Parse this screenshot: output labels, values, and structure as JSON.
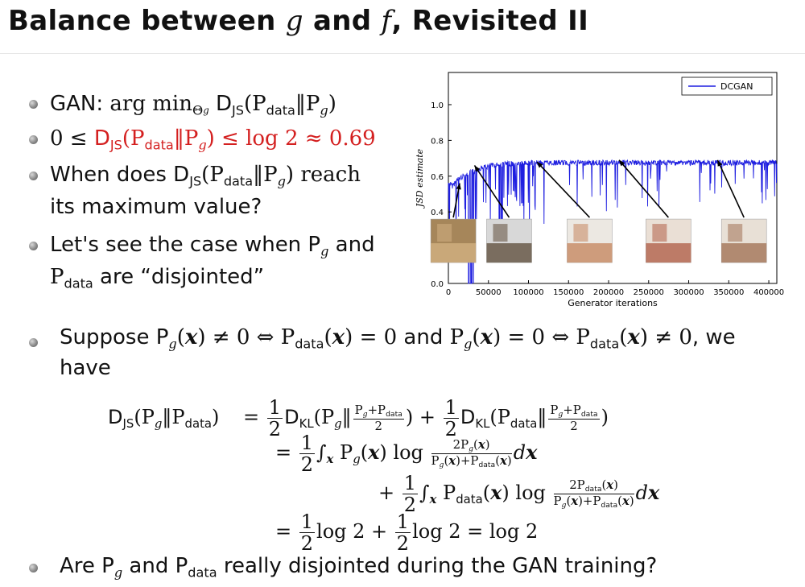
{
  "slide": {
    "title_pre": "Balance between ",
    "title_g": "g",
    "title_and": " and ",
    "title_f": "f",
    "title_post": ", Revisited II"
  },
  "bullets": {
    "b1_prefix": "GAN: ",
    "b1_math": "arg min",
    "b1_sub": "Θ",
    "b1_subsub": "g",
    "b1_rest": "D",
    "b1_js": "JS",
    "b1_expr": "(P",
    "b1_data": "data",
    "b1_end": "‖P",
    "b1_g": "g",
    "b1_close": ")",
    "b2_left": "0 ≤ ",
    "b2_D": "D",
    "b2_JS": "JS",
    "b2_mid": "(P",
    "b2_data": "data",
    "b2_mid2": "‖P",
    "b2_g": "g",
    "b2_right": ") ≤ log 2 ≈ 0.69",
    "b3_line1_a": "When does ",
    "b3_line1_D": "D",
    "b3_line1_JS": "JS",
    "b3_line1_p": "(P",
    "b3_line1_data": "data",
    "b3_line1_pg": "‖P",
    "b3_line1_g": "g",
    "b3_line1_end": ") reach",
    "b3_line2": "its maximum value?",
    "b4_line1_a": "Let's see the case when P",
    "b4_line1_g": "g",
    "b4_line1_b": " and",
    "b4_line2_P": "P",
    "b4_line2_data": "data",
    "b4_line2_b": " are “disjointed”",
    "b5_line1": "Suppose P",
    "b5_line2": "have",
    "b6_a": "Are P",
    "b6_g": "g",
    "b6_b": " and P",
    "b6_data": "data",
    "b6_c": " really disjointed during the GAN training?"
  },
  "chart_data": {
    "type": "line",
    "xlabel": "Generator iterations",
    "ylabel": "JSD estimate",
    "xlim": [
      0,
      410000
    ],
    "ylim": [
      0.0,
      1.18
    ],
    "xticks": [
      0,
      50000,
      100000,
      150000,
      200000,
      250000,
      300000,
      350000,
      400000
    ],
    "yticks": [
      0.0,
      0.4,
      0.6,
      0.8,
      1.0
    ],
    "legend_position": "top-right",
    "color": "#1f1fe0",
    "series": [
      {
        "name": "DCGAN",
        "x": [
          0,
          5000,
          10000,
          20000,
          30000,
          40000,
          50000,
          60000,
          80000,
          100000,
          150000,
          200000,
          250000,
          300000,
          350000,
          400000,
          410000
        ],
        "y": [
          0.58,
          0.56,
          0.59,
          0.62,
          0.64,
          0.66,
          0.67,
          0.68,
          0.685,
          0.688,
          0.69,
          0.69,
          0.69,
          0.69,
          0.69,
          0.69,
          0.69
        ]
      }
    ],
    "sample_thumbnails": 5
  }
}
